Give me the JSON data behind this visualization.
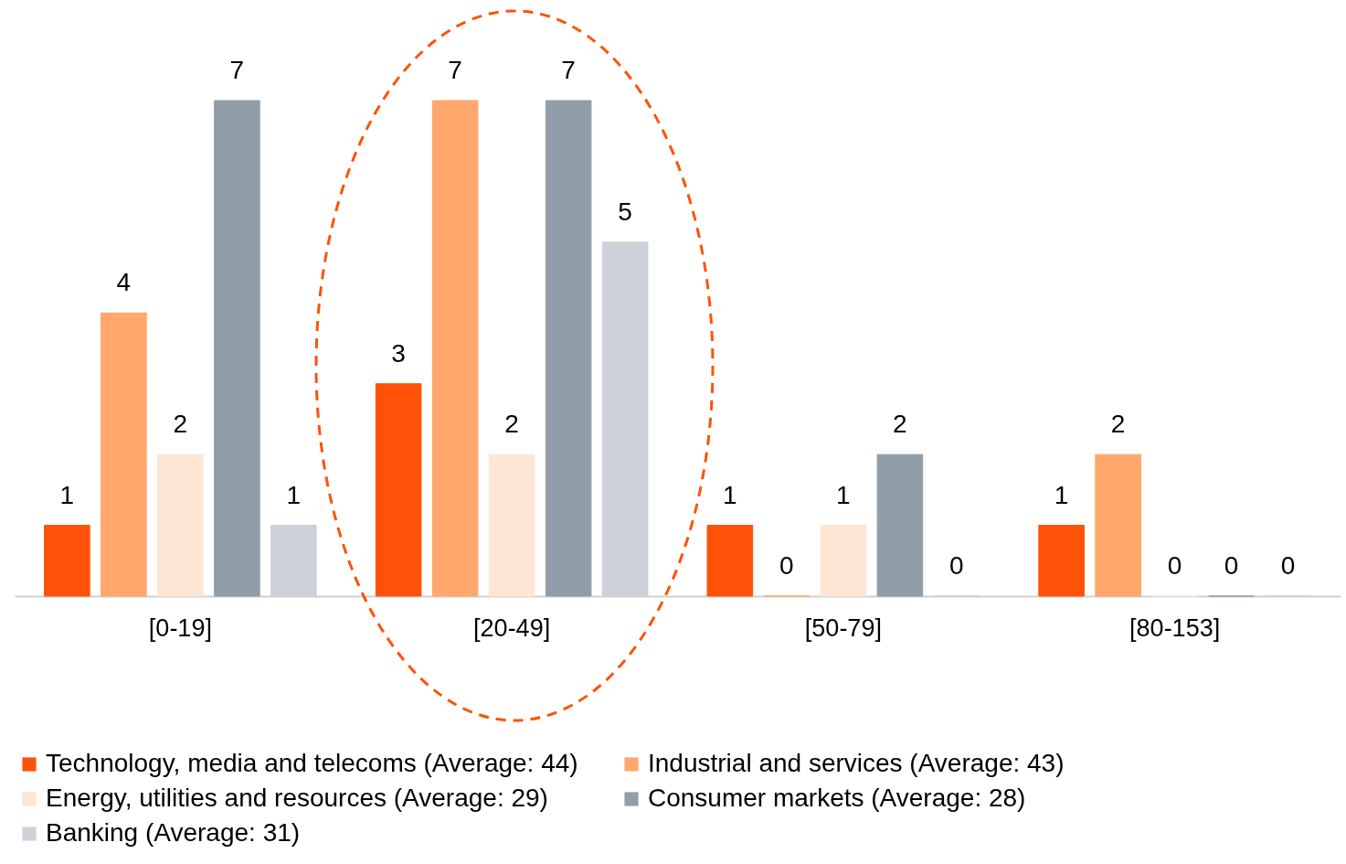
{
  "chart_data": {
    "type": "bar",
    "categories": [
      "[0-19]",
      "[20-49]",
      "[50-79]",
      "[80-153]"
    ],
    "series": [
      {
        "name": "Technology, media and telecoms (Average: 44)",
        "color": "#ff5208",
        "values": [
          1,
          3,
          1,
          1
        ]
      },
      {
        "name": "Industrial and services (Average: 43)",
        "color": "#ffa76c",
        "values": [
          4,
          7,
          0,
          2
        ]
      },
      {
        "name": "Energy, utilities and resources (Average: 29)",
        "color": "#fee6d4",
        "values": [
          2,
          2,
          1,
          0
        ]
      },
      {
        "name": "Consumer markets (Average: 28)",
        "color": "#919ea9",
        "values": [
          7,
          7,
          2,
          0
        ]
      },
      {
        "name": "Banking (Average: 31)",
        "color": "#cdd1d8",
        "values": [
          1,
          5,
          0,
          0
        ]
      }
    ],
    "data_labels": true,
    "legend": "bottom"
  }
}
